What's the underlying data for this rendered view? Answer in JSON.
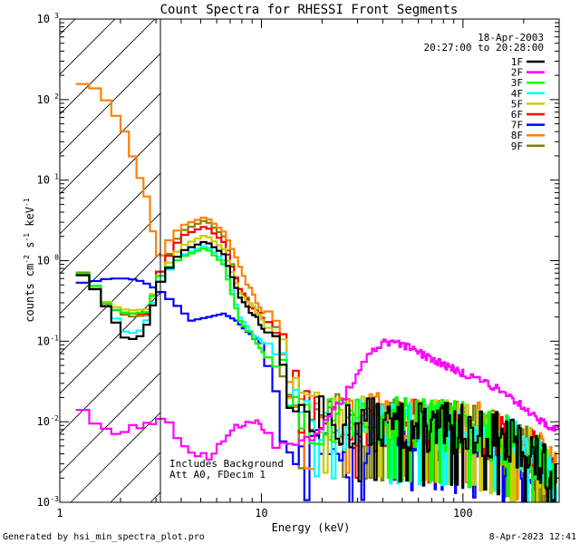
{
  "chart_data": {
    "type": "line",
    "title": "Count Spectra for RHESSI Front Segments",
    "xlabel": "Energy (keV)",
    "ylabel": "counts cm",
    "ylabel_exp1": "-2",
    "ylabel_s": "s",
    "ylabel_exp2": "-1",
    "ylabel_kev": "keV",
    "ylabel_exp3": "-1",
    "xscale": "log",
    "yscale": "log",
    "xlim": [
      1,
      300
    ],
    "ylim": [
      0.001,
      1000
    ],
    "xticks": [
      {
        "value": 1,
        "label": "1"
      },
      {
        "value": 10,
        "label": "10"
      },
      {
        "value": 100,
        "label": "100"
      }
    ],
    "yticks": [
      {
        "value": 0.001,
        "base": "10",
        "exp": "-3"
      },
      {
        "value": 0.01,
        "base": "10",
        "exp": "-2"
      },
      {
        "value": 0.1,
        "base": "10",
        "exp": "-1"
      },
      {
        "value": 1,
        "base": "10",
        "exp": "0"
      },
      {
        "value": 10,
        "base": "10",
        "exp": "1"
      },
      {
        "value": 100,
        "base": "10",
        "exp": "2"
      },
      {
        "value": 1000,
        "base": "10",
        "exp": "3"
      }
    ],
    "hatched_region": {
      "x0": 1,
      "x1": 3
    },
    "date_line": "18-Apr-2003",
    "time_line": "20:27:00 to 20:28:00",
    "annotation_lines": [
      "Includes Background",
      "Att A0, FDecim 1"
    ],
    "legend_position": "top-right",
    "series": [
      {
        "name": "1F",
        "color": "#000000",
        "base": [
          [
            1.2,
            0.8
          ],
          [
            1.45,
            0.5
          ],
          [
            1.75,
            0.24
          ],
          [
            2.15,
            0.1
          ],
          [
            2.6,
            0.12
          ],
          [
            3.2,
            0.6
          ],
          [
            4,
            1.3
          ],
          [
            5.3,
            1.75
          ],
          [
            6.5,
            1.2
          ],
          [
            7.8,
            0.35
          ],
          [
            9.5,
            0.19
          ],
          [
            12,
            0.1
          ],
          [
            13,
            0.04
          ],
          [
            16,
            0.011
          ],
          [
            22,
            0.009
          ],
          [
            35,
            0.009
          ],
          [
            60,
            0.008
          ],
          [
            100,
            0.0075
          ],
          [
            150,
            0.006
          ],
          [
            220,
            0.004
          ],
          [
            290,
            0.0015
          ]
        ]
      },
      {
        "name": "2F",
        "color": "#ff00ff",
        "base": [
          [
            1.2,
            0.016
          ],
          [
            1.45,
            0.011
          ],
          [
            1.8,
            0.007
          ],
          [
            2.3,
            0.0085
          ],
          [
            2.9,
            0.01
          ],
          [
            3.3,
            0.0115
          ],
          [
            4,
            0.005
          ],
          [
            5.5,
            0.0035
          ],
          [
            7.5,
            0.0085
          ],
          [
            9.5,
            0.011
          ],
          [
            12,
            0.005
          ],
          [
            14,
            0.0055
          ],
          [
            18,
            0.006
          ],
          [
            25,
            0.018
          ],
          [
            33,
            0.06
          ],
          [
            40,
            0.095
          ],
          [
            50,
            0.09
          ],
          [
            70,
            0.06
          ],
          [
            100,
            0.04
          ],
          [
            150,
            0.026
          ],
          [
            200,
            0.015
          ],
          [
            260,
            0.009
          ],
          [
            300,
            0.008
          ]
        ]
      },
      {
        "name": "3F",
        "color": "#00ff00",
        "base": [
          [
            1.2,
            0.8
          ],
          [
            1.45,
            0.55
          ],
          [
            1.75,
            0.26
          ],
          [
            2.2,
            0.22
          ],
          [
            2.7,
            0.23
          ],
          [
            3.2,
            0.7
          ],
          [
            4,
            1.1
          ],
          [
            5.3,
            1.45
          ],
          [
            6.5,
            0.9
          ],
          [
            7.8,
            0.18
          ],
          [
            9.5,
            0.09
          ],
          [
            12,
            0.05
          ],
          [
            13,
            0.04
          ],
          [
            16,
            0.011
          ],
          [
            22,
            0.009
          ],
          [
            35,
            0.0095
          ],
          [
            60,
            0.009
          ],
          [
            100,
            0.008
          ],
          [
            150,
            0.006
          ],
          [
            220,
            0.004
          ],
          [
            290,
            0.0015
          ]
        ]
      },
      {
        "name": "4F",
        "color": "#00ffff",
        "base": [
          [
            1.2,
            0.8
          ],
          [
            1.45,
            0.55
          ],
          [
            1.75,
            0.26
          ],
          [
            2.15,
            0.12
          ],
          [
            2.6,
            0.14
          ],
          [
            3.2,
            0.6
          ],
          [
            4,
            1.15
          ],
          [
            5.3,
            1.55
          ],
          [
            6.5,
            1.0
          ],
          [
            7.8,
            0.2
          ],
          [
            9.5,
            0.11
          ],
          [
            12,
            0.07
          ],
          [
            13,
            0.04
          ],
          [
            16,
            0.011
          ],
          [
            22,
            0.009
          ],
          [
            35,
            0.009
          ],
          [
            60,
            0.008
          ],
          [
            100,
            0.008
          ],
          [
            150,
            0.006
          ],
          [
            220,
            0.004
          ],
          [
            290,
            0.0015
          ]
        ]
      },
      {
        "name": "5F",
        "color": "#cccc00",
        "base": [
          [
            1.2,
            0.8
          ],
          [
            1.45,
            0.5
          ],
          [
            1.75,
            0.28
          ],
          [
            2.2,
            0.24
          ],
          [
            2.7,
            0.25
          ],
          [
            3.2,
            0.7
          ],
          [
            4,
            1.5
          ],
          [
            5.3,
            2.1
          ],
          [
            6.5,
            1.4
          ],
          [
            7.8,
            0.4
          ],
          [
            9.5,
            0.22
          ],
          [
            12,
            0.11
          ],
          [
            13,
            0.05
          ],
          [
            16,
            0.012
          ],
          [
            22,
            0.01
          ],
          [
            35,
            0.01
          ],
          [
            60,
            0.009
          ],
          [
            100,
            0.008
          ],
          [
            150,
            0.006
          ],
          [
            220,
            0.004
          ],
          [
            290,
            0.0015
          ]
        ]
      },
      {
        "name": "6F",
        "color": "#ff0000",
        "base": [
          [
            1.2,
            0.8
          ],
          [
            1.45,
            0.5
          ],
          [
            1.75,
            0.26
          ],
          [
            2.2,
            0.22
          ],
          [
            2.7,
            0.22
          ],
          [
            3.2,
            0.8
          ],
          [
            4,
            2.0
          ],
          [
            5.3,
            2.7
          ],
          [
            6.5,
            1.7
          ],
          [
            7.8,
            0.45
          ],
          [
            9.5,
            0.22
          ],
          [
            12,
            0.12
          ],
          [
            13,
            0.05
          ],
          [
            16,
            0.012
          ],
          [
            22,
            0.01
          ],
          [
            35,
            0.0095
          ],
          [
            60,
            0.009
          ],
          [
            100,
            0.008
          ],
          [
            150,
            0.006
          ],
          [
            220,
            0.004
          ],
          [
            290,
            0.0015
          ]
        ]
      },
      {
        "name": "7F",
        "color": "#0000ff",
        "base": [
          [
            1.2,
            0.52
          ],
          [
            1.45,
            0.55
          ],
          [
            1.75,
            0.6
          ],
          [
            2.2,
            0.6
          ],
          [
            2.6,
            0.55
          ],
          [
            3.2,
            0.4
          ],
          [
            3.8,
            0.28
          ],
          [
            4.5,
            0.18
          ],
          [
            5.5,
            0.2
          ],
          [
            6.5,
            0.22
          ],
          [
            7.5,
            0.18
          ],
          [
            8.5,
            0.13
          ],
          [
            10,
            0.1
          ],
          [
            12,
            0.02
          ],
          [
            14,
            0.006
          ],
          [
            18,
            0.005
          ],
          [
            22,
            0.004
          ],
          [
            26,
            0.0032
          ],
          [
            30,
            0.005
          ],
          [
            40,
            0.0055
          ],
          [
            50,
            0.007
          ],
          [
            70,
            0.0065
          ],
          [
            100,
            0.006
          ],
          [
            150,
            0.0045
          ],
          [
            220,
            0.003
          ],
          [
            290,
            0.0012
          ]
        ]
      },
      {
        "name": "8F",
        "color": "#ff8000",
        "base": [
          [
            1.2,
            160
          ],
          [
            1.45,
            150
          ],
          [
            1.75,
            90
          ],
          [
            2.1,
            40
          ],
          [
            2.4,
            14
          ],
          [
            2.75,
            5.5
          ],
          [
            3.05,
            1.0
          ],
          [
            3.5,
            1.8
          ],
          [
            4,
            2.7
          ],
          [
            5.3,
            3.5
          ],
          [
            6.5,
            2.3
          ],
          [
            7.5,
            1.1
          ],
          [
            8.5,
            0.5
          ],
          [
            9.5,
            0.3
          ],
          [
            12,
            0.16
          ],
          [
            13,
            0.12
          ],
          [
            14,
            0.04
          ],
          [
            16,
            0.012
          ],
          [
            22,
            0.011
          ],
          [
            35,
            0.0105
          ],
          [
            60,
            0.0095
          ],
          [
            100,
            0.009
          ],
          [
            150,
            0.0065
          ],
          [
            220,
            0.0045
          ],
          [
            290,
            0.0018
          ]
        ]
      },
      {
        "name": "9F",
        "color": "#808000",
        "base": [
          [
            1.2,
            0.85
          ],
          [
            1.45,
            0.55
          ],
          [
            1.75,
            0.27
          ],
          [
            2.2,
            0.2
          ],
          [
            2.7,
            0.21
          ],
          [
            3.2,
            0.8
          ],
          [
            4,
            2.3
          ],
          [
            5.3,
            3.2
          ],
          [
            6.5,
            2.0
          ],
          [
            7.8,
            0.45
          ],
          [
            9.5,
            0.25
          ],
          [
            12,
            0.13
          ],
          [
            13,
            0.05
          ],
          [
            16,
            0.012
          ],
          [
            22,
            0.01
          ],
          [
            35,
            0.009
          ],
          [
            60,
            0.0085
          ],
          [
            100,
            0.008
          ],
          [
            150,
            0.006
          ],
          [
            220,
            0.004
          ],
          [
            290,
            0.0015
          ]
        ]
      }
    ]
  },
  "footer": {
    "generated_by": "Generated by hsi_min_spectra_plot.pro",
    "timestamp": "8-Apr-2023 12:41"
  }
}
